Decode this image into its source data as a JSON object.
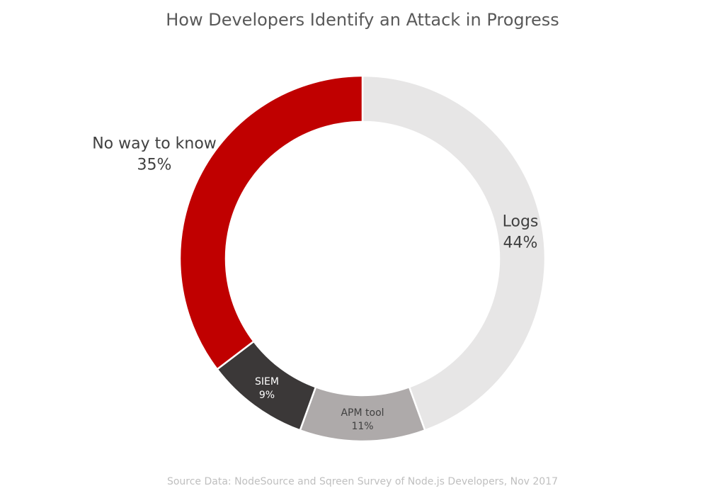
{
  "chart_data": {
    "type": "pie",
    "variant": "donut",
    "title": "How Developers Identify an Attack in Progress",
    "categories": [
      "Logs",
      "APM tool",
      "SIEM",
      "No way to know"
    ],
    "values": [
      44,
      11,
      9,
      35
    ],
    "unit": "%",
    "value_labels": [
      "44%",
      "11%",
      "9%",
      "35%"
    ],
    "colors": [
      "#E7E6E6",
      "#AEAAAA",
      "#3B3838",
      "#C00000"
    ],
    "start_angle": "12 o'clock",
    "direction": "clockwise",
    "legend": "none (data labels on slices)",
    "source": "Source Data: NodeSource and Sqreen Survey of Node.js Developers, Nov 2017"
  },
  "title": "How Developers Identify an Attack in Progress",
  "labels": {
    "logs": {
      "name": "Logs",
      "value": "44%"
    },
    "apm": {
      "name": "APM tool",
      "value": "11%"
    },
    "siem": {
      "name": "SIEM",
      "value": "9%"
    },
    "noway": {
      "name": "No way to know",
      "value": "35%"
    }
  },
  "source_note": "Source Data: NodeSource and Sqreen Survey of Node.js Developers, Nov 2017"
}
